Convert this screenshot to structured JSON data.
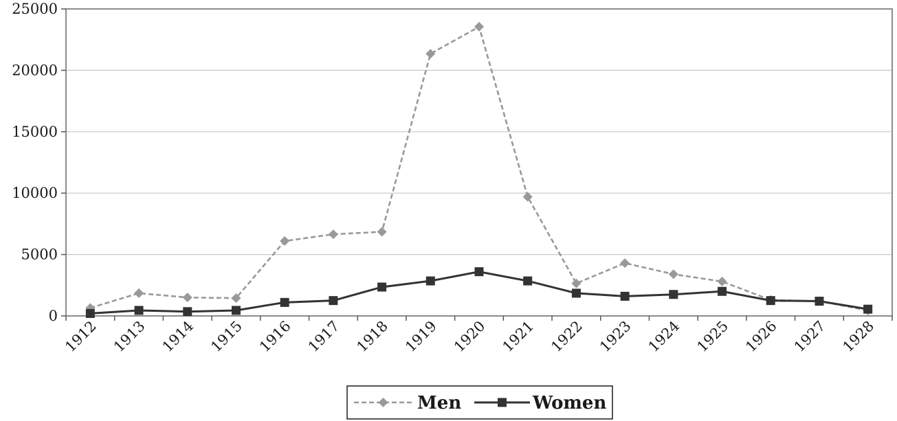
{
  "chart_data": {
    "type": "line",
    "title": "",
    "xlabel": "",
    "ylabel": "",
    "categories": [
      "1912",
      "1913",
      "1914",
      "1915",
      "1916",
      "1917",
      "1918",
      "1919",
      "1920",
      "1921",
      "1922",
      "1923",
      "1924",
      "1925",
      "1926",
      "1927",
      "1928"
    ],
    "ylim": [
      0,
      25000
    ],
    "yticks": [
      "0",
      "5000",
      "10000",
      "15000",
      "20000",
      "25000"
    ],
    "grid": true,
    "legend_position": "bottom",
    "series": [
      {
        "name": "Men",
        "values": [
          650,
          1850,
          1500,
          1450,
          6100,
          6650,
          6850,
          21350,
          23550,
          9700,
          2650,
          4300,
          3400,
          2800,
          1300,
          1200,
          450
        ],
        "color": "#999999",
        "line_style": "dashed",
        "marker": "diamond"
      },
      {
        "name": "Women",
        "values": [
          200,
          450,
          350,
          450,
          1100,
          1250,
          2350,
          2850,
          3600,
          2850,
          1850,
          1600,
          1750,
          2000,
          1250,
          1200,
          550
        ],
        "color": "#333333",
        "line_style": "solid",
        "marker": "square"
      }
    ]
  }
}
